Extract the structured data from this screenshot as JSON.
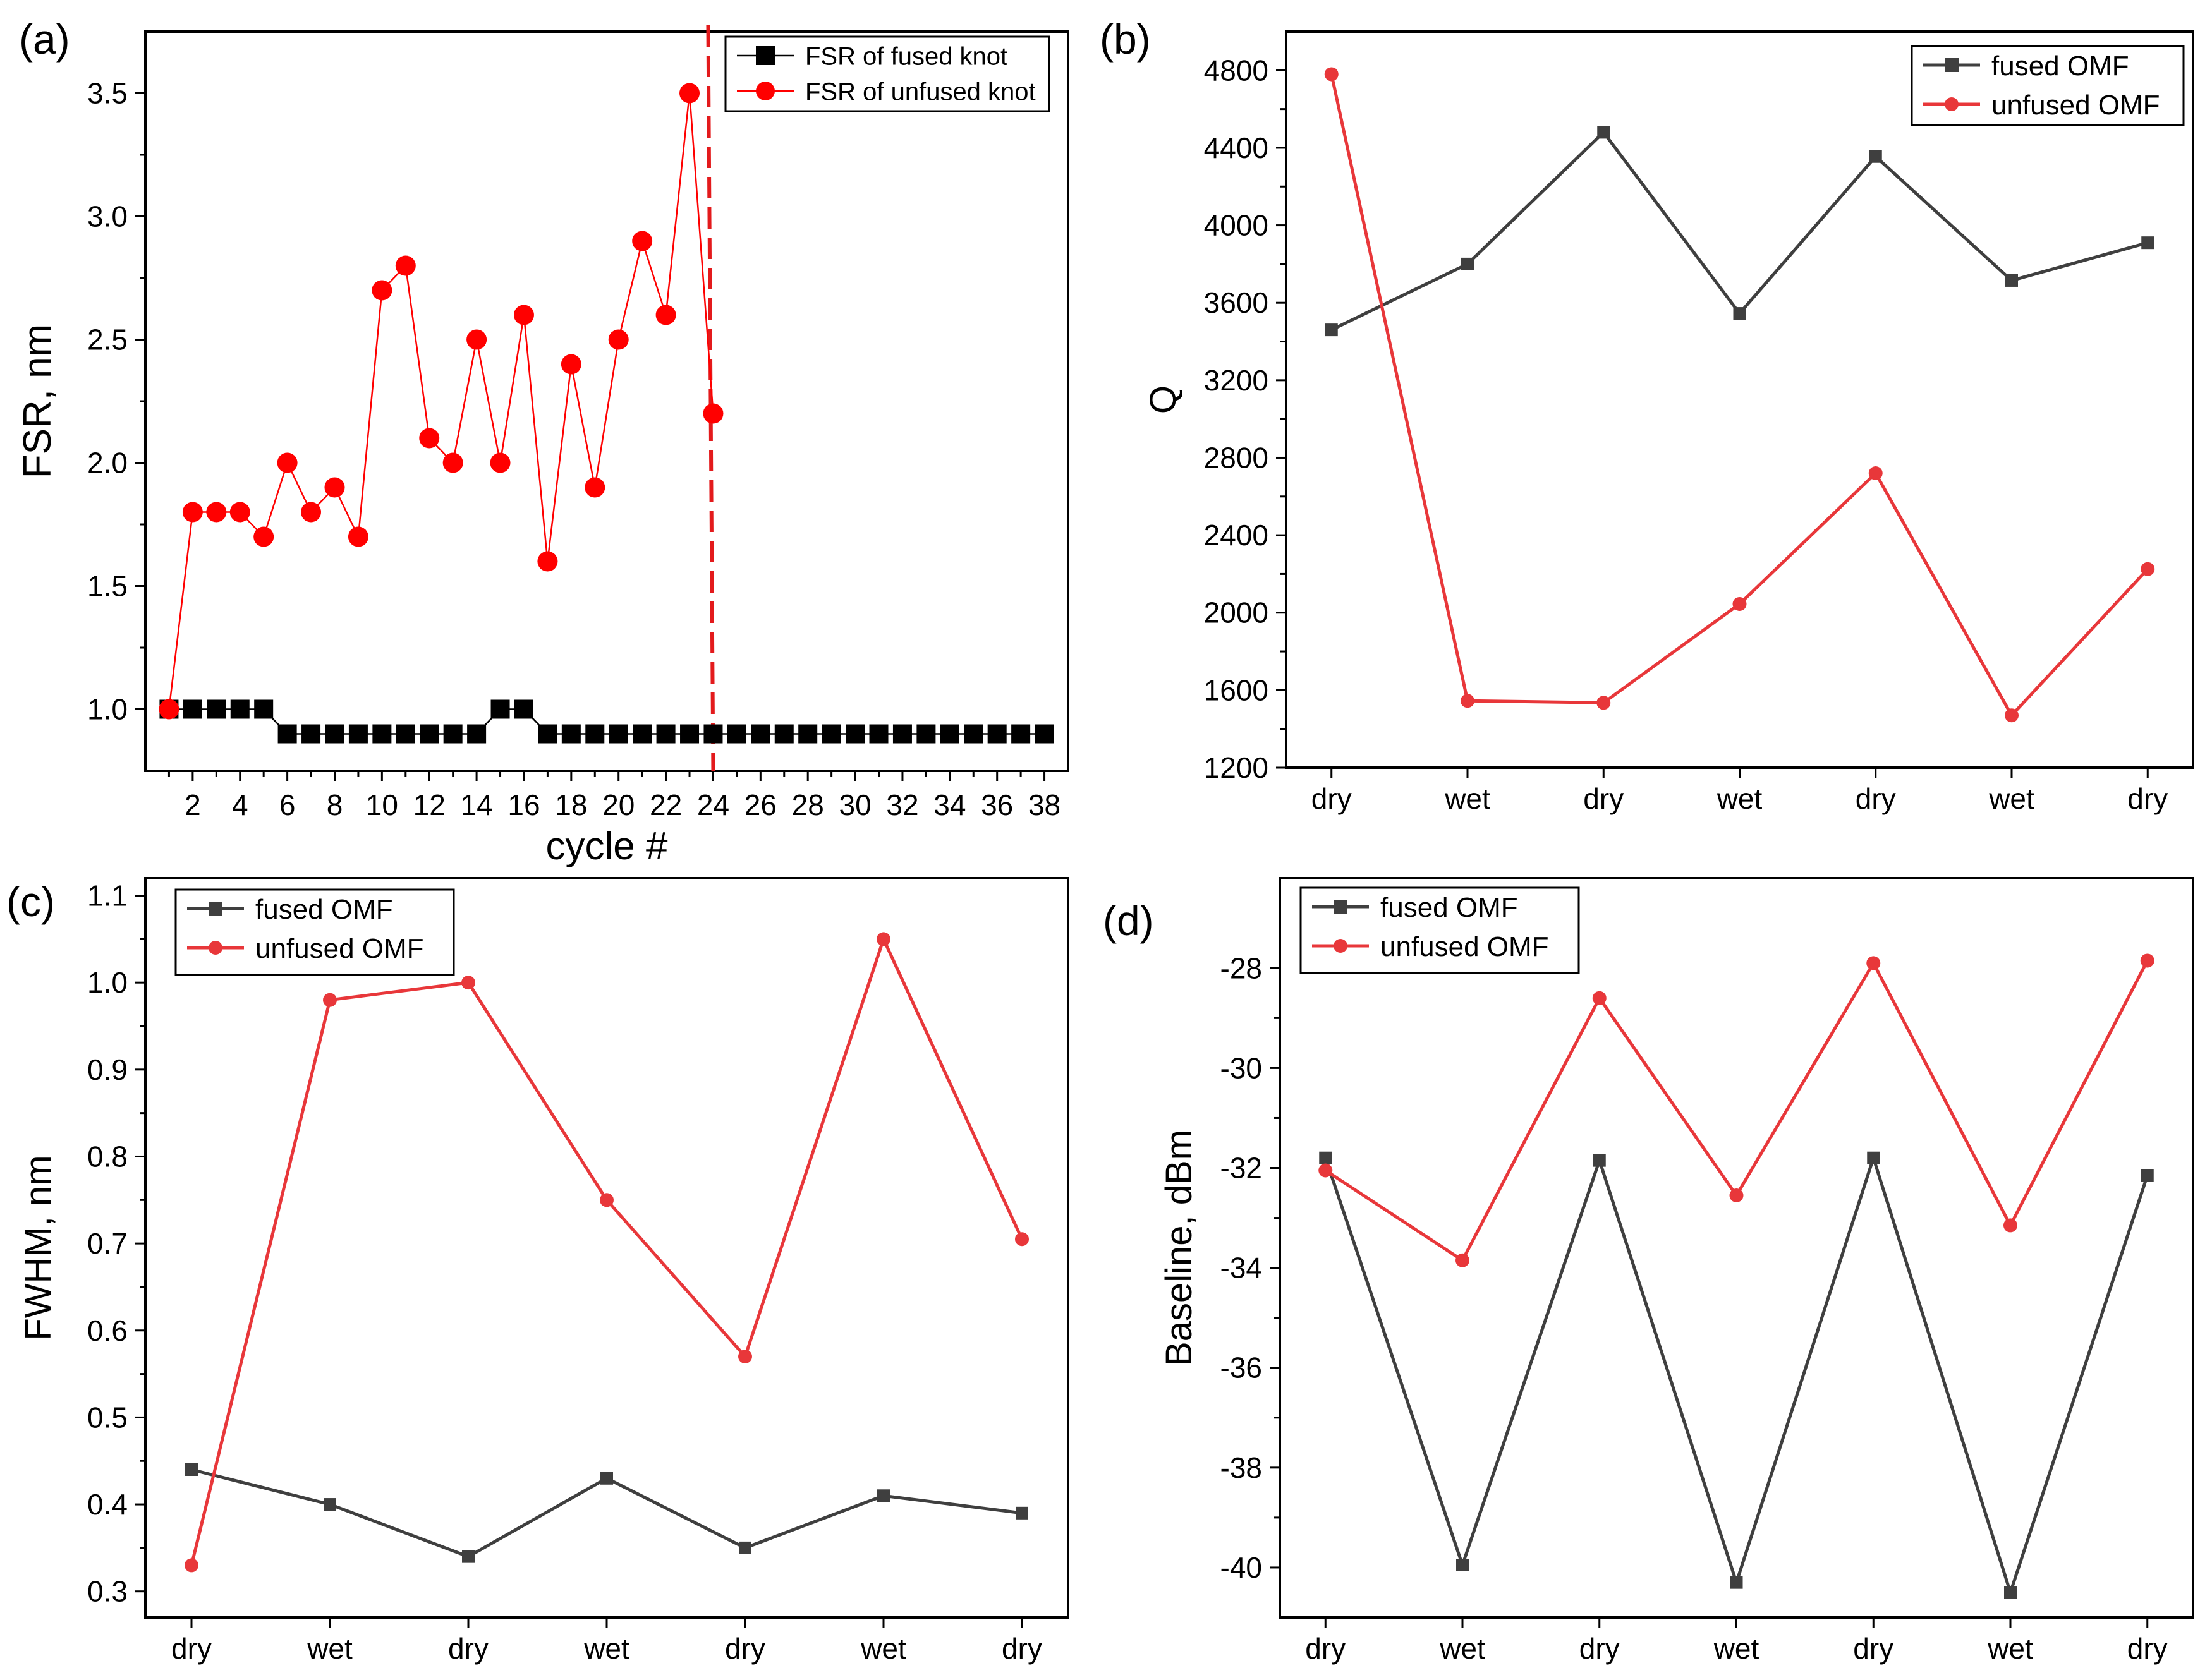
{
  "chart_data": [
    {
      "panel_label": "(a)",
      "type": "line",
      "xlabel": "cycle #",
      "ylabel": "FSR, nm",
      "xlim": [
        0,
        39
      ],
      "ylim": [
        0.75,
        3.75
      ],
      "x_ticks": [
        2,
        4,
        6,
        8,
        10,
        12,
        14,
        16,
        18,
        20,
        22,
        24,
        26,
        28,
        30,
        32,
        34,
        36,
        38
      ],
      "y_ticks": [
        1.0,
        1.5,
        2.0,
        2.5,
        3.0,
        3.5
      ],
      "y_tick_labels": [
        "1.0",
        "1.5",
        "2.0",
        "2.5",
        "3.0",
        "3.5"
      ],
      "legend_position": "top-right",
      "vertical_marker": {
        "x": 24.0,
        "style": "dashed",
        "color": "#e31a1c"
      },
      "series": [
        {
          "name": "FSR of fused knot",
          "color": "#000000",
          "marker": "square",
          "x": [
            1,
            2,
            3,
            4,
            5,
            6,
            7,
            8,
            9,
            10,
            11,
            12,
            13,
            14,
            15,
            16,
            17,
            18,
            19,
            20,
            21,
            22,
            23,
            24,
            25,
            26,
            27,
            28,
            29,
            30,
            31,
            32,
            33,
            34,
            35,
            36,
            37,
            38
          ],
          "y": [
            1.0,
            1.0,
            1.0,
            1.0,
            1.0,
            0.9,
            0.9,
            0.9,
            0.9,
            0.9,
            0.9,
            0.9,
            0.9,
            0.9,
            1.0,
            1.0,
            0.9,
            0.9,
            0.9,
            0.9,
            0.9,
            0.9,
            0.9,
            0.9,
            0.9,
            0.9,
            0.9,
            0.9,
            0.9,
            0.9,
            0.9,
            0.9,
            0.9,
            0.9,
            0.9,
            0.9,
            0.9,
            0.9
          ]
        },
        {
          "name": "FSR of unfused knot",
          "color": "#ff0000",
          "marker": "circle",
          "x": [
            1,
            2,
            3,
            4,
            5,
            6,
            7,
            8,
            9,
            10,
            11,
            12,
            13,
            14,
            15,
            16,
            17,
            18,
            19,
            20,
            21,
            22,
            23,
            24
          ],
          "y": [
            1.0,
            1.8,
            1.8,
            1.8,
            1.7,
            2.0,
            1.8,
            1.9,
            1.7,
            2.7,
            2.8,
            2.1,
            2.0,
            2.5,
            2.0,
            2.6,
            1.6,
            2.4,
            1.9,
            2.5,
            2.9,
            2.6,
            3.5,
            2.2
          ]
        }
      ]
    },
    {
      "panel_label": "(b)",
      "type": "line",
      "xlabel": "",
      "ylabel": "Q",
      "categories": [
        "dry",
        "wet",
        "dry",
        "wet",
        "dry",
        "wet",
        "dry"
      ],
      "ylim": [
        1200,
        5000
      ],
      "y_ticks": [
        1200,
        1600,
        2000,
        2400,
        2800,
        3200,
        3600,
        4000,
        4400,
        4800
      ],
      "y_tick_labels": [
        "1200",
        "1600",
        "2000",
        "2400",
        "2800",
        "3200",
        "3600",
        "4000",
        "4400",
        "4800"
      ],
      "legend_position": "top-right",
      "series": [
        {
          "name": "fused OMF",
          "color": "#3f3f3f",
          "marker": "square",
          "values": [
            3460,
            3800,
            4480,
            3545,
            4355,
            3715,
            3910
          ]
        },
        {
          "name": "unfused OMF",
          "color": "#e8373a",
          "marker": "circle",
          "values": [
            4780,
            1545,
            1535,
            2045,
            2720,
            1470,
            2225
          ]
        }
      ]
    },
    {
      "panel_label": "(c)",
      "type": "line",
      "xlabel": "",
      "ylabel": "FWHM, nm",
      "categories": [
        "dry",
        "wet",
        "dry",
        "wet",
        "dry",
        "wet",
        "dry"
      ],
      "ylim": [
        0.27,
        1.12
      ],
      "y_ticks": [
        0.3,
        0.4,
        0.5,
        0.6,
        0.7,
        0.8,
        0.9,
        1.0,
        1.1
      ],
      "y_tick_labels": [
        "0.3",
        "0.4",
        "0.5",
        "0.6",
        "0.7",
        "0.8",
        "0.9",
        "1.0",
        "1.1"
      ],
      "legend_position": "top-left",
      "series": [
        {
          "name": "fused OMF",
          "color": "#3f3f3f",
          "marker": "square",
          "values": [
            0.44,
            0.4,
            0.34,
            0.43,
            0.35,
            0.41,
            0.39
          ]
        },
        {
          "name": "unfused OMF",
          "color": "#e8373a",
          "marker": "circle",
          "values": [
            0.33,
            0.98,
            1.0,
            0.75,
            0.57,
            1.05,
            0.705
          ]
        }
      ]
    },
    {
      "panel_label": "(d)",
      "type": "line",
      "xlabel": "",
      "ylabel": "Baseline, dBm",
      "categories": [
        "dry",
        "wet",
        "dry",
        "wet",
        "dry",
        "wet",
        "dry"
      ],
      "ylim": [
        -41.0,
        -26.2
      ],
      "y_ticks": [
        -40,
        -38,
        -36,
        -34,
        -32,
        -30,
        -28
      ],
      "y_tick_labels": [
        "-40",
        "-38",
        "-36",
        "-34",
        "-32",
        "-30",
        "-28"
      ],
      "legend_position": "top-left",
      "series": [
        {
          "name": "fused OMF",
          "color": "#3f3f3f",
          "marker": "square",
          "values": [
            -31.8,
            -39.95,
            -31.85,
            -40.3,
            -31.8,
            -40.5,
            -32.15
          ]
        },
        {
          "name": "unfused OMF",
          "color": "#e8373a",
          "marker": "circle",
          "values": [
            -32.05,
            -33.85,
            -28.6,
            -32.55,
            -27.9,
            -33.15,
            -27.85
          ]
        }
      ]
    }
  ]
}
